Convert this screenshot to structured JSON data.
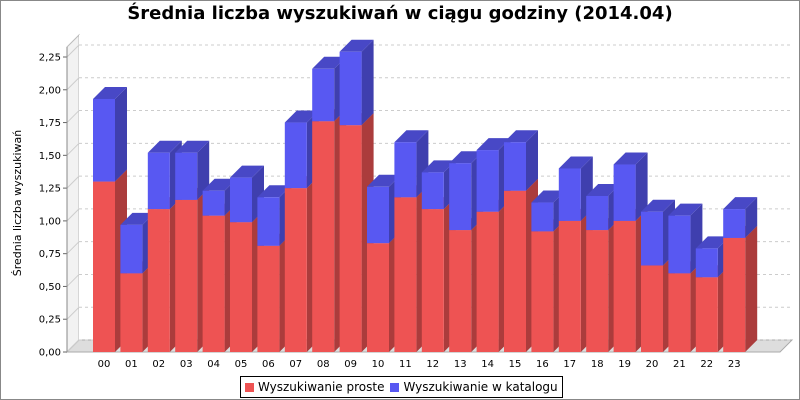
{
  "chart_data": {
    "type": "bar",
    "stacked": true,
    "style": "3d",
    "title": "Średnia liczba wyszukiwań w ciągu godziny (2014.04)",
    "xlabel": "",
    "ylabel": "Średnia liczba wyszukiwań",
    "ylim": [
      0,
      2.25
    ],
    "yticks": [
      "0,00",
      "0,25",
      "0,50",
      "0,75",
      "1,00",
      "1,25",
      "1,50",
      "1,75",
      "2,00",
      "2,25"
    ],
    "grid": true,
    "legend_position": "bottom",
    "categories": [
      "00",
      "01",
      "02",
      "03",
      "04",
      "05",
      "06",
      "07",
      "08",
      "09",
      "10",
      "11",
      "12",
      "13",
      "14",
      "15",
      "16",
      "17",
      "18",
      "19",
      "20",
      "21",
      "22",
      "23"
    ],
    "series": [
      {
        "name": "Wyszukiwanie proste",
        "color": "#ee5353",
        "values": [
          1.3,
          0.6,
          1.09,
          1.16,
          1.04,
          0.99,
          0.81,
          1.25,
          1.76,
          1.73,
          0.83,
          1.18,
          1.09,
          0.93,
          1.07,
          1.23,
          0.92,
          1.0,
          0.93,
          1.0,
          0.66,
          0.6,
          0.57,
          0.87
        ]
      },
      {
        "name": "Wyszukiwanie w katalogu",
        "color": "#5858f2",
        "values": [
          0.63,
          0.37,
          0.43,
          0.36,
          0.19,
          0.34,
          0.37,
          0.5,
          0.4,
          0.56,
          0.43,
          0.42,
          0.28,
          0.51,
          0.47,
          0.37,
          0.22,
          0.4,
          0.26,
          0.43,
          0.41,
          0.44,
          0.22,
          0.22
        ]
      }
    ]
  }
}
